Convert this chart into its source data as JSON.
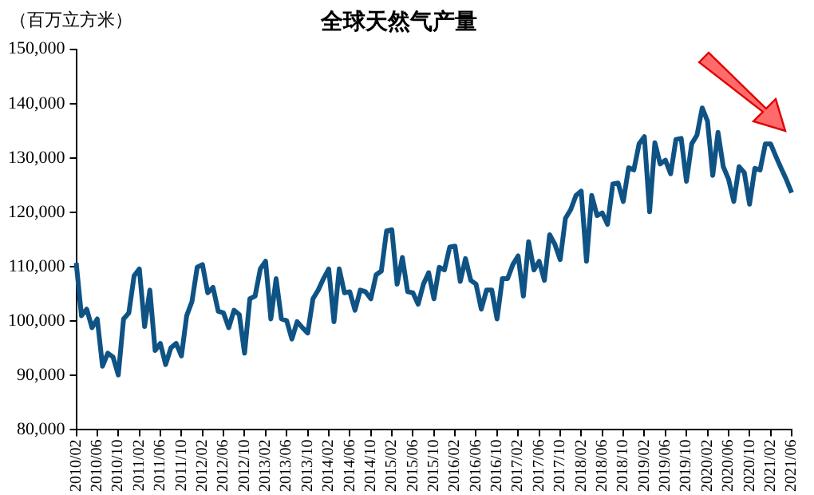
{
  "chart_data": {
    "type": "line",
    "title": "全球天然气产量",
    "ylabel": "（百万立方米）",
    "categories": [
      "2010/02",
      null,
      null,
      null,
      "2010/06",
      null,
      null,
      null,
      "2010/10",
      null,
      null,
      null,
      "2011/02",
      null,
      null,
      null,
      "2011/06",
      null,
      null,
      null,
      "2011/10",
      null,
      null,
      null,
      "2012/02",
      null,
      null,
      null,
      "2012/06",
      null,
      null,
      null,
      "2012/10",
      null,
      null,
      null,
      "2013/02",
      null,
      null,
      null,
      "2013/06",
      null,
      null,
      null,
      "2013/10",
      null,
      null,
      null,
      "2014/02",
      null,
      null,
      null,
      "2014/06",
      null,
      null,
      null,
      "2014/10",
      null,
      null,
      null,
      "2015/02",
      null,
      null,
      null,
      "2015/06",
      null,
      null,
      null,
      "2015/10",
      null,
      null,
      null,
      "2016/02",
      null,
      null,
      null,
      "2016/06",
      null,
      null,
      null,
      "2016/10",
      null,
      null,
      null,
      "2017/02",
      null,
      null,
      null,
      "2017/06",
      null,
      null,
      null,
      "2017/10",
      null,
      null,
      null,
      "2018/02",
      null,
      null,
      null,
      "2018/06",
      null,
      null,
      null,
      "2018/10",
      null,
      null,
      null,
      "2019/02",
      null,
      null,
      null,
      "2019/06",
      null,
      null,
      null,
      "2019/10",
      null,
      null,
      null,
      "2020/02",
      null,
      null,
      null,
      "2020/06",
      null,
      null,
      null,
      "2020/10",
      null,
      null,
      null,
      "2021/02",
      null,
      null,
      null,
      "2021/06"
    ],
    "series": [
      {
        "color": "#0f5385",
        "values": [
          110700,
          101000,
          102200,
          98800,
          100400,
          91700,
          94100,
          93400,
          90100,
          100400,
          101500,
          108300,
          109600,
          99000,
          105700,
          94600,
          95900,
          92000,
          95100,
          95900,
          93600,
          101000,
          103600,
          109900,
          110400,
          105200,
          106200,
          101800,
          101500,
          98800,
          102000,
          101200,
          94100,
          104100,
          104600,
          109600,
          111000,
          100400,
          107800,
          100400,
          100100,
          96700,
          99900,
          98800,
          97800,
          104100,
          105700,
          107800,
          109600,
          99900,
          109600,
          105200,
          105400,
          102000,
          105700,
          105400,
          104100,
          108500,
          109200,
          116600,
          116800,
          106800,
          111700,
          105400,
          105200,
          103100,
          106800,
          108900,
          104100,
          109900,
          109400,
          113600,
          113800,
          107300,
          111500,
          107500,
          106800,
          102200,
          105700,
          105700,
          100400,
          107800,
          107800,
          110400,
          112000,
          104600,
          114600,
          109400,
          111000,
          107500,
          115900,
          114100,
          111300,
          118900,
          120500,
          123100,
          123900,
          111000,
          123100,
          119400,
          119900,
          117800,
          125200,
          125400,
          122000,
          128200,
          127800,
          132600,
          133900,
          120100,
          132800,
          128900,
          129600,
          127100,
          133400,
          133600,
          125700,
          132600,
          134200,
          139200,
          136800,
          126800,
          134700,
          128400,
          126100,
          122000,
          128400,
          127300,
          121500,
          128100,
          127800,
          132600,
          132600,
          130300,
          128100,
          126000,
          123600
        ]
      }
    ],
    "ylim": [
      80000,
      150000
    ],
    "yticks": [
      {
        "value": 80000,
        "label": "80,000"
      },
      {
        "value": 90000,
        "label": "90,000"
      },
      {
        "value": 100000,
        "label": "100,000"
      },
      {
        "value": 110000,
        "label": "110,000"
      },
      {
        "value": 120000,
        "label": "120,000"
      },
      {
        "value": 130000,
        "label": "130,000"
      },
      {
        "value": 140000,
        "label": "140,000"
      },
      {
        "value": 150000,
        "label": "150,000"
      }
    ],
    "grid": false,
    "legend": false,
    "marker": "none",
    "line_style": "solid"
  }
}
